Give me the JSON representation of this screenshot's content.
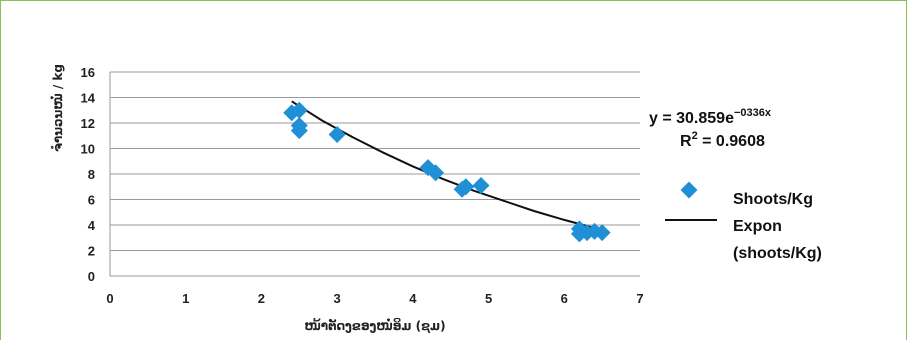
{
  "chart_data": {
    "type": "scatter",
    "xlabel": "ໜ້າຕັດງຂອງໜໍ່ອິມ (ຊມ)",
    "ylabel": "ຈຳນວນໜໍ່ / kg",
    "xlim": [
      0,
      7
    ],
    "ylim": [
      0,
      16
    ],
    "x_ticks": [
      0,
      1,
      2,
      3,
      4,
      5,
      6,
      7
    ],
    "y_ticks": [
      0,
      2,
      4,
      6,
      8,
      10,
      12,
      14,
      16
    ],
    "grid": "horizontal",
    "series": [
      {
        "name": "Shoots/Kg",
        "marker": "diamond",
        "color": "#1f8fd6",
        "points": [
          [
            2.4,
            12.8
          ],
          [
            2.5,
            13.0
          ],
          [
            2.5,
            11.8
          ],
          [
            2.5,
            11.4
          ],
          [
            3.0,
            11.1
          ],
          [
            4.2,
            8.5
          ],
          [
            4.3,
            8.1
          ],
          [
            4.65,
            6.8
          ],
          [
            4.7,
            7.0
          ],
          [
            4.9,
            7.1
          ],
          [
            6.2,
            3.7
          ],
          [
            6.2,
            3.3
          ],
          [
            6.3,
            3.4
          ],
          [
            6.4,
            3.5
          ],
          [
            6.5,
            3.4
          ]
        ]
      },
      {
        "name": "Expon",
        "name_line2": "(shoots/Kg)",
        "type": "line",
        "color": "#111111",
        "curve": [
          [
            2.4,
            13.7
          ],
          [
            2.8,
            12.2
          ],
          [
            3.2,
            10.9
          ],
          [
            3.6,
            9.7
          ],
          [
            4.0,
            8.6
          ],
          [
            4.4,
            7.6
          ],
          [
            4.8,
            6.7
          ],
          [
            5.2,
            5.9
          ],
          [
            5.6,
            5.1
          ],
          [
            6.0,
            4.4
          ],
          [
            6.5,
            3.6
          ]
        ]
      }
    ],
    "annotation": {
      "equation_prefix": "y = 30.859e",
      "equation_exponent": "−0336x",
      "r2_prefix": "R",
      "r2_exponent": "2",
      "r2_suffix": " = 0.9608"
    },
    "legend_position": "right"
  }
}
